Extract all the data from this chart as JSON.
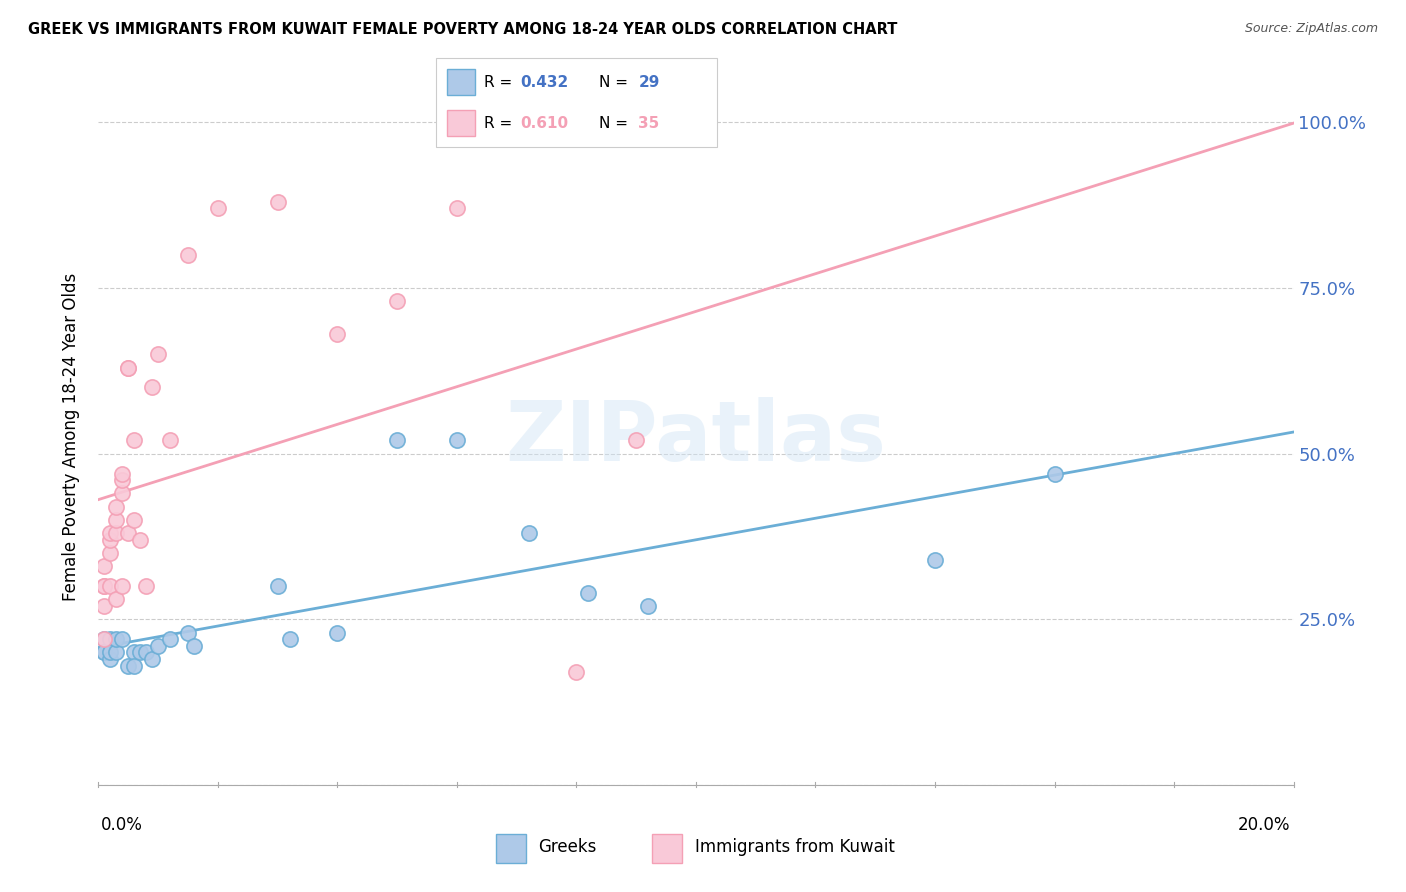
{
  "title": "GREEK VS IMMIGRANTS FROM KUWAIT FEMALE POVERTY AMONG 18-24 YEAR OLDS CORRELATION CHART",
  "source": "Source: ZipAtlas.com",
  "ylabel": "Female Poverty Among 18-24 Year Olds",
  "greek_color": "#6baed6",
  "greek_color_fill": "#aec9e8",
  "kuwait_color": "#f4a0b5",
  "kuwait_color_fill": "#f9c9d8",
  "legend_R_greek": "0.432",
  "legend_N_greek": "29",
  "legend_R_kuwait": "0.610",
  "legend_N_kuwait": "35",
  "watermark": "ZIPatlas",
  "greeks_x": [
    0.001,
    0.001,
    0.001,
    0.002,
    0.002,
    0.002,
    0.003,
    0.003,
    0.004,
    0.005,
    0.006,
    0.006,
    0.007,
    0.008,
    0.009,
    0.01,
    0.012,
    0.015,
    0.016,
    0.03,
    0.032,
    0.04,
    0.05,
    0.06,
    0.072,
    0.082,
    0.092,
    0.14,
    0.16
  ],
  "greeks_y": [
    0.22,
    0.2,
    0.2,
    0.19,
    0.22,
    0.2,
    0.2,
    0.22,
    0.22,
    0.18,
    0.2,
    0.18,
    0.2,
    0.2,
    0.19,
    0.21,
    0.22,
    0.23,
    0.21,
    0.3,
    0.22,
    0.23,
    0.52,
    0.52,
    0.38,
    0.29,
    0.27,
    0.34,
    0.47
  ],
  "kuwait_x": [
    0.001,
    0.001,
    0.001,
    0.001,
    0.001,
    0.002,
    0.002,
    0.002,
    0.002,
    0.003,
    0.003,
    0.003,
    0.003,
    0.004,
    0.004,
    0.004,
    0.004,
    0.005,
    0.005,
    0.005,
    0.006,
    0.006,
    0.007,
    0.008,
    0.009,
    0.01,
    0.012,
    0.015,
    0.02,
    0.03,
    0.04,
    0.05,
    0.06,
    0.08,
    0.09
  ],
  "kuwait_y": [
    0.3,
    0.3,
    0.33,
    0.27,
    0.22,
    0.35,
    0.37,
    0.38,
    0.3,
    0.38,
    0.4,
    0.42,
    0.28,
    0.44,
    0.46,
    0.47,
    0.3,
    0.63,
    0.63,
    0.38,
    0.52,
    0.4,
    0.37,
    0.3,
    0.6,
    0.65,
    0.52,
    0.8,
    0.87,
    0.88,
    0.68,
    0.73,
    0.87,
    0.17,
    0.52
  ],
  "xlim": [
    0.0,
    0.2
  ],
  "ylim": [
    0.0,
    1.05
  ]
}
